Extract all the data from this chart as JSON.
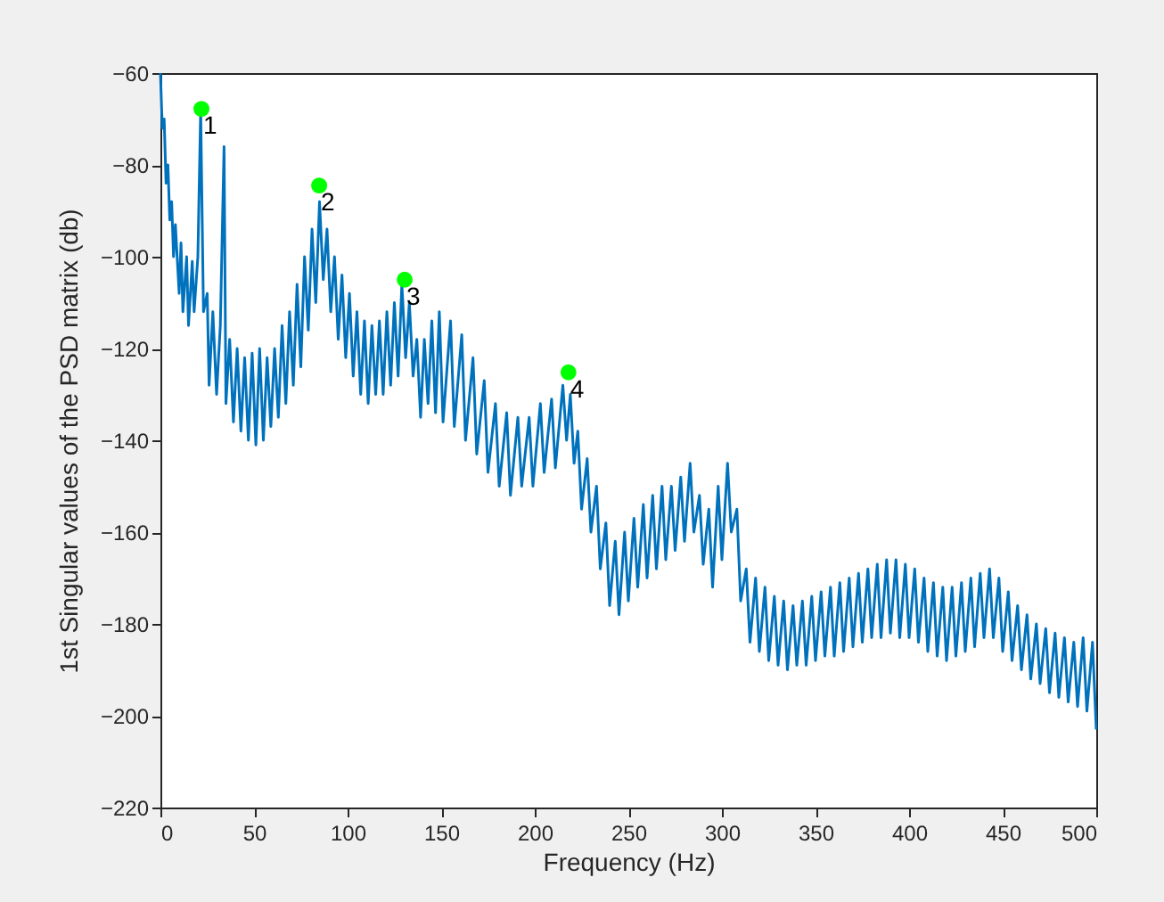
{
  "chart_data": {
    "type": "line",
    "xlabel": "Frequency (Hz)",
    "ylabel": "1st Singular values of the PSD matrix (db)",
    "xlim": [
      0,
      500
    ],
    "xticks": [
      0,
      50,
      100,
      150,
      200,
      250,
      300,
      350,
      400,
      450,
      500
    ],
    "ylim": [
      -220,
      -60
    ],
    "yticks": [
      -220,
      -200,
      -180,
      -160,
      -140,
      -120,
      -100,
      -80,
      -60
    ],
    "series": [
      {
        "color": "#0072bd",
        "x": [
          0,
          1,
          2,
          3,
          4,
          5,
          6,
          7,
          8,
          10,
          11,
          12,
          14,
          15,
          17,
          18,
          20,
          21.5,
          23,
          25,
          26,
          28,
          30,
          32,
          34,
          35,
          37,
          39,
          41,
          43,
          45,
          47,
          49,
          51,
          53,
          55,
          57,
          59,
          61,
          63,
          65,
          67,
          69,
          71,
          73,
          75,
          77,
          79,
          81,
          83,
          85,
          87,
          89,
          91,
          93,
          95,
          97,
          99,
          101,
          103,
          105,
          107,
          109,
          111,
          113,
          115,
          117,
          119,
          121,
          123,
          125,
          127,
          129,
          131,
          133,
          135,
          137,
          139,
          141,
          143,
          145,
          147,
          149,
          151,
          155,
          157,
          161,
          163,
          167,
          169,
          173,
          175,
          179,
          181,
          185,
          187,
          191,
          193,
          197,
          199,
          203,
          205,
          209,
          211,
          215,
          217,
          219,
          221,
          223,
          225,
          228,
          230,
          233,
          235,
          238,
          240,
          243,
          245,
          248,
          250,
          253,
          255,
          258,
          260,
          263,
          265,
          268,
          270,
          273,
          275,
          278,
          280,
          283,
          285,
          288,
          290,
          293,
          295,
          298,
          300,
          303,
          305,
          308,
          310,
          313,
          315,
          318,
          320,
          323,
          325,
          328,
          330,
          333,
          335,
          338,
          340,
          343,
          345,
          348,
          350,
          353,
          355,
          358,
          360,
          363,
          365,
          368,
          370,
          373,
          375,
          378,
          380,
          383,
          385,
          388,
          390,
          393,
          395,
          398,
          400,
          403,
          405,
          408,
          410,
          413,
          415,
          418,
          420,
          423,
          425,
          428,
          430,
          433,
          435,
          438,
          440,
          443,
          445,
          448,
          450,
          453,
          455,
          458,
          460,
          463,
          465,
          468,
          470,
          473,
          475,
          478,
          480,
          483,
          485,
          488,
          490,
          493,
          495,
          498,
          500
        ],
        "values": [
          -60,
          -72,
          -70,
          -84,
          -80,
          -92,
          -88,
          -100,
          -93,
          -108,
          -97,
          -112,
          -100,
          -115,
          -101,
          -112,
          -100,
          -68,
          -112,
          -108,
          -128,
          -112,
          -130,
          -115,
          -76,
          -132,
          -118,
          -136,
          -120,
          -138,
          -122,
          -140,
          -121,
          -141,
          -120,
          -140,
          -122,
          -137,
          -120,
          -135,
          -115,
          -132,
          -112,
          -128,
          -106,
          -124,
          -100,
          -116,
          -94,
          -110,
          -88,
          -105,
          -94,
          -112,
          -100,
          -118,
          -104,
          -122,
          -108,
          -126,
          -112,
          -130,
          -114,
          -132,
          -115,
          -130,
          -114,
          -130,
          -112,
          -128,
          -110,
          -126,
          -106,
          -122,
          -110,
          -126,
          -118,
          -135,
          -118,
          -132,
          -114,
          -134,
          -112,
          -136,
          -114,
          -137,
          -117,
          -140,
          -122,
          -143,
          -127,
          -147,
          -132,
          -150,
          -134,
          -152,
          -135,
          -150,
          -135,
          -150,
          -132,
          -147,
          -131,
          -146,
          -128,
          -140,
          -130,
          -145,
          -138,
          -155,
          -144,
          -160,
          -150,
          -168,
          -158,
          -176,
          -162,
          -178,
          -160,
          -175,
          -157,
          -172,
          -154,
          -170,
          -152,
          -168,
          -150,
          -166,
          -150,
          -164,
          -148,
          -162,
          -145,
          -160,
          -152,
          -167,
          -155,
          -172,
          -150,
          -166,
          -145,
          -160,
          -155,
          -175,
          -168,
          -184,
          -170,
          -186,
          -172,
          -188,
          -174,
          -189,
          -175,
          -190,
          -176,
          -189,
          -175,
          -189,
          -174,
          -188,
          -173,
          -187,
          -172,
          -187,
          -171,
          -186,
          -170,
          -185,
          -169,
          -184,
          -168,
          -183,
          -167,
          -183,
          -166,
          -182,
          -166,
          -183,
          -167,
          -183,
          -168,
          -184,
          -170,
          -186,
          -171,
          -187,
          -172,
          -188,
          -172,
          -187,
          -171,
          -186,
          -170,
          -185,
          -169,
          -183,
          -168,
          -183,
          -170,
          -186,
          -173,
          -188,
          -176,
          -190,
          -178,
          -192,
          -180,
          -193,
          -181,
          -195,
          -182,
          -196,
          -183,
          -197,
          -184,
          -198,
          -183,
          -199,
          -184,
          -203
        ]
      },
      {
        "type": "scatter",
        "color": "#00ff00",
        "marker": "circle",
        "x": [
          21.9,
          84.8,
          130.5,
          218
        ],
        "values": [
          -67.8,
          -84.5,
          -105,
          -125.2
        ]
      }
    ],
    "annotations": [
      {
        "text": "1",
        "x": 21.9,
        "y": -67.8
      },
      {
        "text": "2",
        "x": 84.8,
        "y": -84.5
      },
      {
        "text": "3",
        "x": 130.5,
        "y": -105
      },
      {
        "text": "4",
        "x": 218,
        "y": -125.2
      }
    ]
  }
}
